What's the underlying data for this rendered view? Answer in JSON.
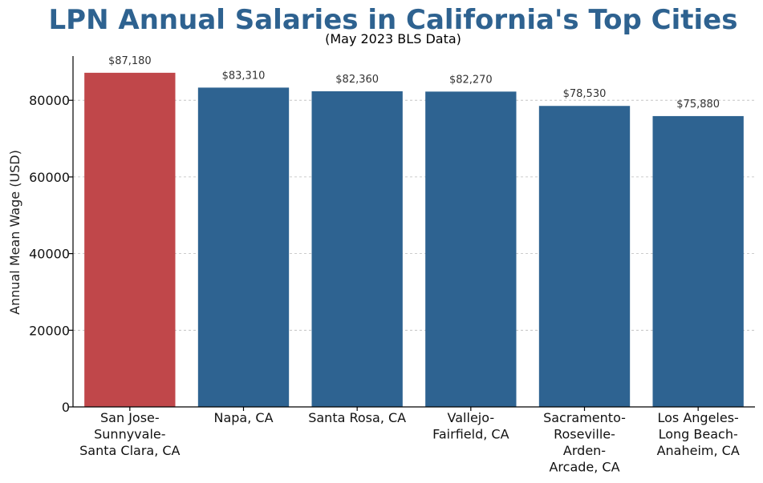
{
  "chart_data": {
    "type": "bar",
    "title": "LPN Annual Salaries in California's Top Cities",
    "subtitle": "(May 2023 BLS Data)",
    "xlabel": "",
    "ylabel": "Annual Mean Wage (USD)",
    "categories": [
      [
        "San Jose-",
        "Sunnyvale-",
        "Santa Clara, CA"
      ],
      [
        "Napa, CA"
      ],
      [
        "Santa Rosa, CA"
      ],
      [
        "Vallejo-",
        "Fairfield, CA"
      ],
      [
        "Sacramento-",
        "Roseville-",
        "Arden-",
        "Arcade, CA"
      ],
      [
        "Los Angeles-",
        "Long Beach-",
        "Anaheim, CA"
      ]
    ],
    "values": [
      87180,
      83310,
      82360,
      82270,
      78530,
      75880
    ],
    "data_labels": [
      "$87,180",
      "$83,310",
      "$82,360",
      "$82,270",
      "$78,530",
      "$75,880"
    ],
    "ylim": [
      0,
      91539
    ],
    "yticks": [
      0,
      20000,
      40000,
      60000,
      80000
    ],
    "ytick_labels": [
      "0",
      "20000",
      "40000",
      "60000",
      "80000"
    ],
    "grid": "y-dashed",
    "colors": {
      "title": "#2e6290",
      "highlight_bar": "#c0474a",
      "bar": "#2e6391"
    },
    "highlight_index": 0
  }
}
